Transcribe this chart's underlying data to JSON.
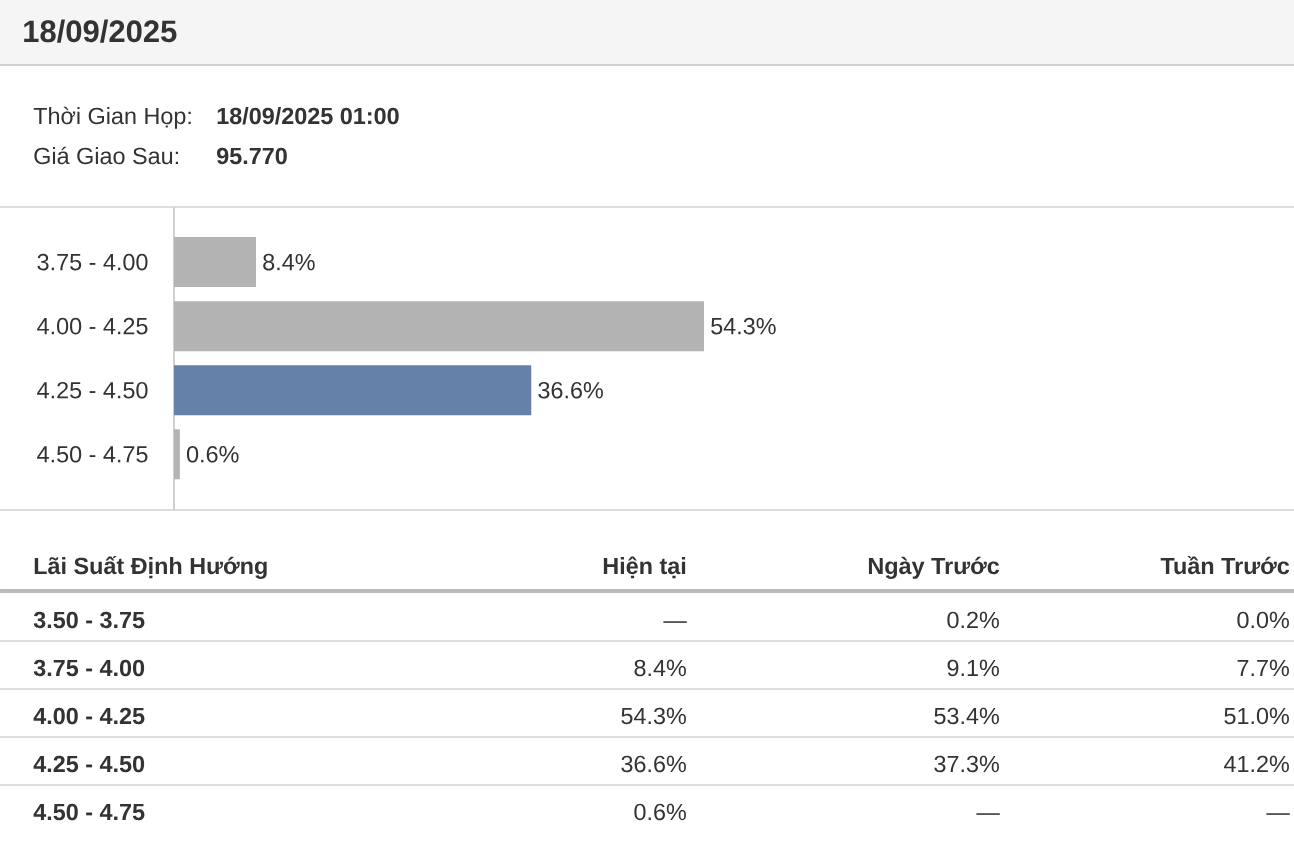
{
  "chart_data": [
    {
      "type": "other",
      "title": "18/09/2025",
      "annotations": [
        "Thời Gian Họp:",
        "18/09/2025 01:00",
        "Giá Giao Sau:",
        "95.770"
      ]
    },
    {
      "type": "bar",
      "orientation": "horizontal",
      "categories": [
        "3.75 - 4.00",
        "4.00 - 4.25",
        "4.25 - 4.50",
        "4.50 - 4.75"
      ],
      "values": [
        8.4,
        54.3,
        36.6,
        0.6
      ],
      "value_labels": [
        "8.4%",
        "54.3%",
        "36.6%",
        "0.6%"
      ],
      "colors": [
        "#b3b3b3",
        "#b3b3b3",
        "#6581aa",
        "#b3b3b3"
      ],
      "tick_labels": "y"
    },
    {
      "type": "other",
      "annotations": [
        "Lãi Suất Định Hướng",
        "Hiện tại",
        "Ngày Trước",
        "Tuần Trước",
        "3.50 - 3.75",
        "—",
        "0.2%",
        "0.0%",
        "3.75 - 4.00",
        "8.4%",
        "9.1%",
        "7.7%",
        "4.00 - 4.25",
        "54.3%",
        "53.4%",
        "51.0%",
        "4.25 - 4.50",
        "36.6%",
        "37.3%",
        "41.2%",
        "4.50 - 4.75",
        "0.6%",
        "—",
        "—"
      ]
    }
  ]
}
